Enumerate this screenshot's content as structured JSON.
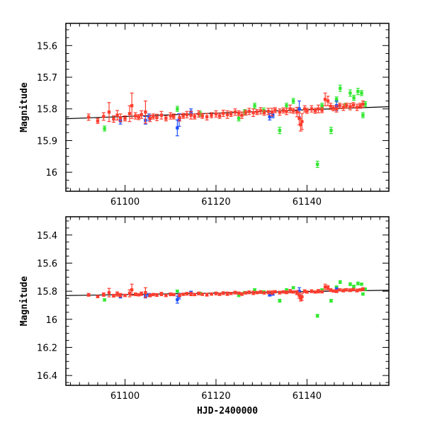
{
  "chart_data": {
    "type": "scatter",
    "xlabel": "HJD-2400000",
    "ylabel": "Magnitude",
    "colors": {
      "red": "#ff3d2e",
      "green": "#33e833",
      "blue": "#1f4fff",
      "fit": "#000000"
    },
    "trend_line": {
      "x": [
        61087,
        61158
      ],
      "y": [
        15.831,
        15.793
      ]
    },
    "series": [
      {
        "name": "red",
        "points": [
          [
            61092,
            15.826,
            0.01
          ],
          [
            61094,
            15.838,
            0.008
          ],
          [
            61095.3,
            15.824,
            0.012
          ],
          [
            61096.5,
            15.81,
            0.03
          ],
          [
            61097.5,
            15.832,
            0.01
          ],
          [
            61098.3,
            15.82,
            0.015
          ],
          [
            61099,
            15.828,
            0.012
          ],
          [
            61100,
            15.83,
            0.008
          ],
          [
            61101,
            15.815,
            0.025
          ],
          [
            61101.5,
            15.79,
            0.04
          ],
          [
            61102.3,
            15.822,
            0.01
          ],
          [
            61103,
            15.826,
            0.008
          ],
          [
            61103.6,
            15.818,
            0.012
          ],
          [
            61104.5,
            15.81,
            0.035
          ],
          [
            61105.5,
            15.83,
            0.01
          ],
          [
            61106.2,
            15.824,
            0.008
          ],
          [
            61107,
            15.827,
            0.01
          ],
          [
            61108,
            15.82,
            0.012
          ],
          [
            61109,
            15.83,
            0.008
          ],
          [
            61110,
            15.822,
            0.01
          ],
          [
            61110.7,
            15.824,
            0.008
          ],
          [
            61112,
            15.828,
            0.01
          ],
          [
            61112.8,
            15.822,
            0.008
          ],
          [
            61113.6,
            15.818,
            0.01
          ],
          [
            61114.5,
            15.82,
            0.012
          ],
          [
            61115.3,
            15.824,
            0.008
          ],
          [
            61116.2,
            15.816,
            0.01
          ],
          [
            61117,
            15.822,
            0.008
          ],
          [
            61118,
            15.825,
            0.01
          ],
          [
            61119,
            15.82,
            0.008
          ],
          [
            61120,
            15.816,
            0.01
          ],
          [
            61120.8,
            15.822,
            0.008
          ],
          [
            61121.6,
            15.814,
            0.01
          ],
          [
            61122.5,
            15.818,
            0.012
          ],
          [
            61123.3,
            15.816,
            0.008
          ],
          [
            61124.2,
            15.81,
            0.01
          ],
          [
            61125,
            15.814,
            0.008
          ],
          [
            61125.7,
            15.82,
            0.01
          ],
          [
            61126.5,
            15.812,
            0.008
          ],
          [
            61127.3,
            15.808,
            0.01
          ],
          [
            61128.2,
            15.812,
            0.012
          ],
          [
            61129,
            15.81,
            0.008
          ],
          [
            61129.8,
            15.806,
            0.01
          ],
          [
            61130.6,
            15.812,
            0.008
          ],
          [
            61131.5,
            15.808,
            0.01
          ],
          [
            61132.3,
            15.81,
            0.012
          ],
          [
            61133,
            15.804,
            0.008
          ],
          [
            61134,
            15.81,
            0.01
          ],
          [
            61134.8,
            15.805,
            0.008
          ],
          [
            61135.5,
            15.808,
            0.01
          ],
          [
            61136.3,
            15.8,
            0.012
          ],
          [
            61137,
            15.806,
            0.008
          ],
          [
            61137.8,
            15.81,
            0.015
          ],
          [
            61138.3,
            15.83,
            0.02
          ],
          [
            61138.6,
            15.85,
            0.02
          ],
          [
            61138.9,
            15.84,
            0.025
          ],
          [
            61139.5,
            15.8,
            0.01
          ],
          [
            61140,
            15.806,
            0.008
          ],
          [
            61141,
            15.8,
            0.01
          ],
          [
            61141.8,
            15.806,
            0.008
          ],
          [
            61142.5,
            15.8,
            0.012
          ],
          [
            61143.3,
            15.804,
            0.008
          ],
          [
            61144,
            15.77,
            0.02
          ],
          [
            61144.6,
            15.775,
            0.015
          ],
          [
            61145.2,
            15.792,
            0.01
          ],
          [
            61145.8,
            15.798,
            0.008
          ],
          [
            61146.5,
            15.8,
            0.01
          ],
          [
            61147.2,
            15.79,
            0.008
          ],
          [
            61148,
            15.795,
            0.01
          ],
          [
            61148.7,
            15.79,
            0.008
          ],
          [
            61149.5,
            15.793,
            0.01
          ],
          [
            61150.2,
            15.788,
            0.008
          ],
          [
            61151,
            15.795,
            0.01
          ],
          [
            61151.7,
            15.79,
            0.008
          ],
          [
            61152.3,
            15.785,
            0.01
          ]
        ]
      },
      {
        "name": "green",
        "points": [
          [
            61095.5,
            15.862,
            0.008
          ],
          [
            61111.5,
            15.8,
            0.008
          ],
          [
            61116.5,
            15.815,
            0.008
          ],
          [
            61125,
            15.83,
            0.008
          ],
          [
            61126.3,
            15.81,
            0.008
          ],
          [
            61128.5,
            15.79,
            0.008
          ],
          [
            61130.5,
            15.805,
            0.008
          ],
          [
            61134,
            15.868,
            0.01
          ],
          [
            61135.5,
            15.79,
            0.008
          ],
          [
            61137,
            15.775,
            0.008
          ],
          [
            61142.3,
            15.975,
            0.01
          ],
          [
            61143.3,
            15.79,
            0.008
          ],
          [
            61145.3,
            15.868,
            0.01
          ],
          [
            61146.5,
            15.77,
            0.008
          ],
          [
            61147.3,
            15.735,
            0.01
          ],
          [
            61148.5,
            15.79,
            0.008
          ],
          [
            61149.5,
            15.75,
            0.01
          ],
          [
            61150.3,
            15.765,
            0.008
          ],
          [
            61151.2,
            15.745,
            0.01
          ],
          [
            61152,
            15.75,
            0.008
          ],
          [
            61152.8,
            15.785,
            0.008
          ],
          [
            61152.3,
            15.82,
            0.008
          ]
        ]
      },
      {
        "name": "blue",
        "points": [
          [
            61099,
            15.838,
            0.01
          ],
          [
            61104.5,
            15.836,
            0.012
          ],
          [
            61105.3,
            15.826,
            0.01
          ],
          [
            61111.5,
            15.86,
            0.025
          ],
          [
            61111.9,
            15.835,
            0.02
          ],
          [
            61114.5,
            15.81,
            0.01
          ],
          [
            61131.8,
            15.825,
            0.01
          ],
          [
            61132.5,
            15.82,
            0.008
          ],
          [
            61138.3,
            15.8,
            0.025
          ],
          [
            61146.5,
            15.79,
            0.015
          ]
        ]
      }
    ],
    "panels": [
      {
        "name": "top",
        "xlim": [
          61087,
          61158
        ],
        "ylim": [
          15.53,
          16.06
        ],
        "xticks": [
          61100,
          61120,
          61140
        ],
        "xtick_labels": [
          "61100",
          "61120",
          "61140"
        ],
        "yticks": [
          15.6,
          15.7,
          15.8,
          15.9,
          16.0
        ],
        "ytick_labels": [
          "15.6",
          "15.7",
          "15.8",
          "15.9",
          "16"
        ],
        "show_xlabel": false
      },
      {
        "name": "bottom",
        "xlim": [
          61087,
          61158
        ],
        "ylim": [
          15.27,
          16.47
        ],
        "xticks": [
          61100,
          61120,
          61140
        ],
        "xtick_labels": [
          "61100",
          "61120",
          "61140"
        ],
        "yticks": [
          15.4,
          15.6,
          15.8,
          16.0,
          16.2,
          16.4
        ],
        "ytick_labels": [
          "15.4",
          "15.6",
          "15.8",
          "16",
          "16.2",
          "16.4"
        ],
        "show_xlabel": true
      }
    ]
  }
}
